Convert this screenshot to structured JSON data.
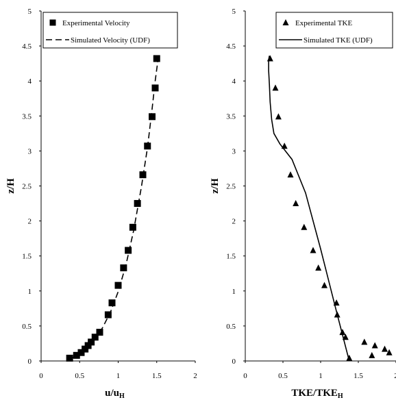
{
  "chart_data": [
    {
      "type": "scatter+line",
      "xlabel_main": "u/u",
      "xlabel_sub": "H",
      "ylabel": "z/H",
      "xlim": [
        0,
        2
      ],
      "ylim": [
        0,
        5
      ],
      "xticks": [
        "0",
        "0.5",
        "1",
        "1.5",
        "2"
      ],
      "yticks": [
        "0",
        "0.5",
        "1",
        "1.5",
        "2",
        "2.5",
        "3",
        "3.5",
        "4",
        "4.5",
        "5"
      ],
      "grid": false,
      "legend_position": "top-right",
      "series": [
        {
          "name": "Experimental Velocity",
          "style": "square-markers",
          "x": [
            0.37,
            0.46,
            0.52,
            0.57,
            0.61,
            0.65,
            0.7,
            0.76,
            0.87,
            0.92,
            1.0,
            1.07,
            1.13,
            1.19,
            1.25,
            1.32,
            1.38,
            1.44,
            1.48,
            1.5
          ],
          "y": [
            0.04,
            0.08,
            0.12,
            0.17,
            0.22,
            0.27,
            0.34,
            0.41,
            0.66,
            0.83,
            1.08,
            1.33,
            1.58,
            1.91,
            2.25,
            2.66,
            3.07,
            3.49,
            3.9,
            4.32
          ]
        },
        {
          "name": "Simulated Velocity (UDF)",
          "style": "dashed-line",
          "x": [
            0.4,
            0.5,
            0.6,
            0.7,
            0.8,
            0.9,
            1.0,
            1.1,
            1.2,
            1.3,
            1.38,
            1.44,
            1.48,
            1.51,
            1.52
          ],
          "y": [
            0.04,
            0.1,
            0.19,
            0.31,
            0.48,
            0.7,
            0.99,
            1.37,
            1.86,
            2.48,
            3.05,
            3.6,
            4.0,
            4.25,
            4.4
          ]
        }
      ]
    },
    {
      "type": "scatter+line",
      "xlabel_main": "TKE/TKE",
      "xlabel_sub": "H",
      "ylabel": "z/H",
      "xlim": [
        0,
        2
      ],
      "ylim": [
        0,
        5
      ],
      "xticks": [
        "0",
        "0.5",
        "1",
        "1.5",
        "2"
      ],
      "yticks": [
        "0",
        "0.5",
        "1",
        "1.5",
        "2",
        "2.5",
        "3",
        "3.5",
        "4",
        "4.5",
        "5"
      ],
      "grid": false,
      "legend_position": "top-right",
      "series": [
        {
          "name": "Experimental TKE",
          "style": "triangle-markers",
          "x": [
            1.38,
            1.68,
            1.91,
            1.85,
            1.72,
            1.58,
            1.33,
            1.29,
            1.22,
            1.21,
            1.05,
            0.97,
            0.9,
            0.78,
            0.67,
            0.6,
            0.52,
            0.44,
            0.4,
            0.33
          ],
          "y": [
            0.04,
            0.08,
            0.12,
            0.17,
            0.22,
            0.27,
            0.34,
            0.41,
            0.66,
            0.83,
            1.08,
            1.33,
            1.58,
            1.91,
            2.25,
            2.66,
            3.07,
            3.49,
            3.9,
            4.32
          ]
        },
        {
          "name": "Simulated TKE (UDF)",
          "style": "solid-line",
          "x": [
            1.37,
            1.2,
            1.0,
            0.8,
            0.62,
            0.46,
            0.38,
            0.35,
            0.33,
            0.32,
            0.31,
            0.31,
            0.32
          ],
          "y": [
            0.04,
            0.75,
            1.6,
            2.4,
            2.88,
            3.1,
            3.25,
            3.45,
            3.7,
            3.95,
            4.15,
            4.3,
            4.36
          ]
        }
      ]
    }
  ]
}
